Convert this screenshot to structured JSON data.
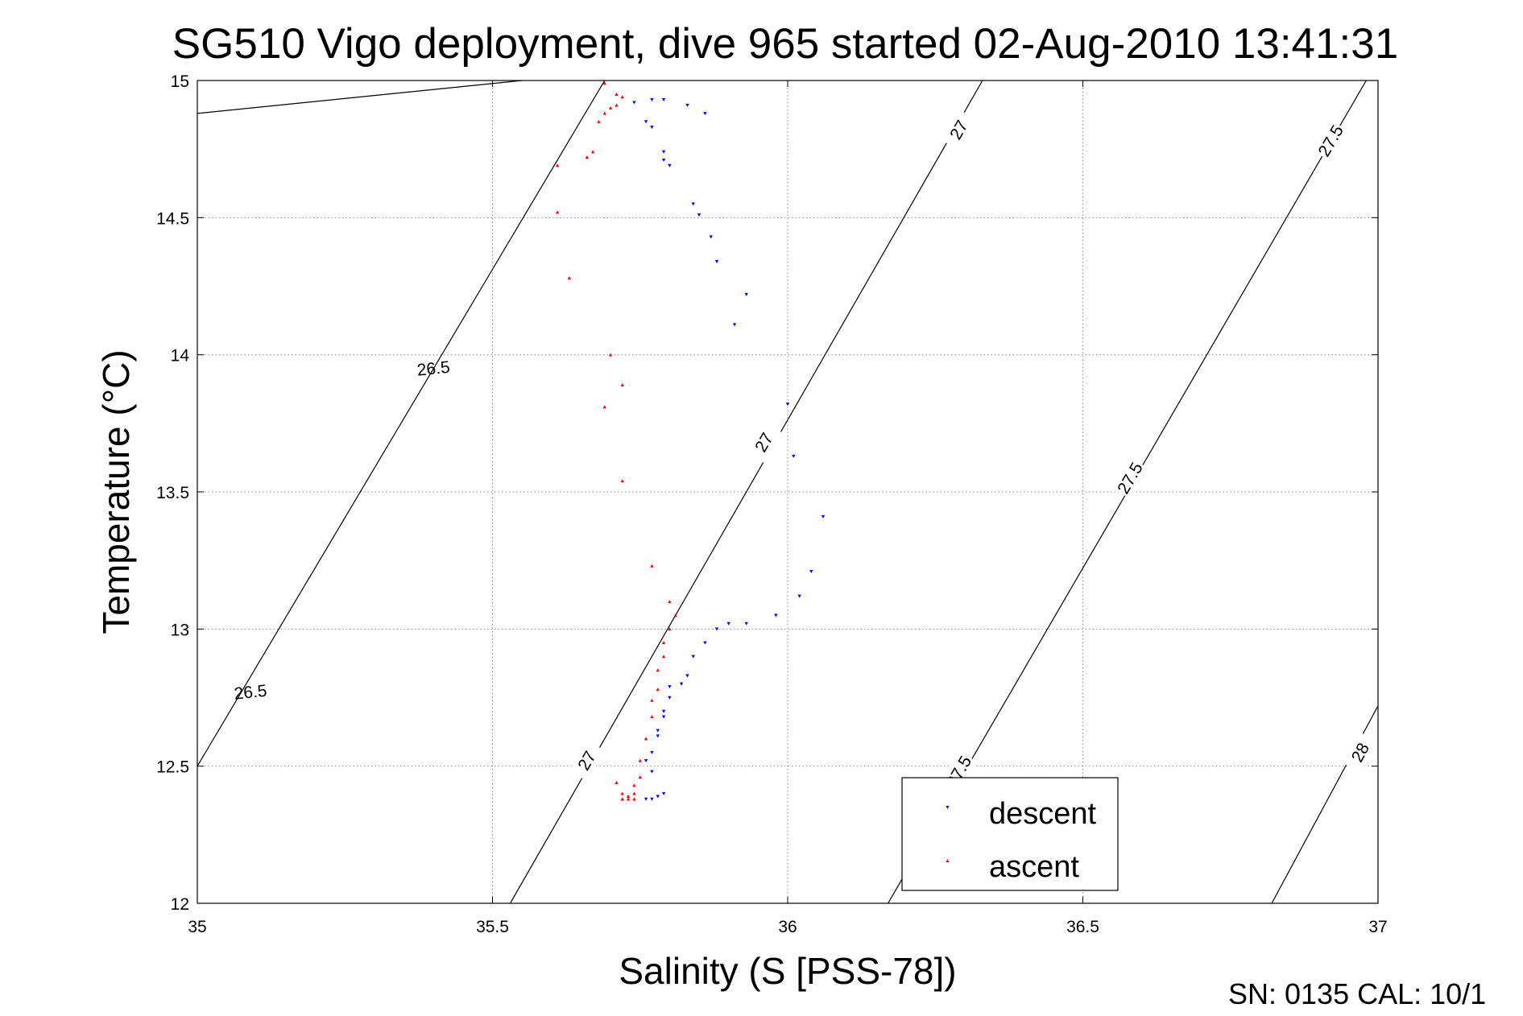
{
  "chart_data": {
    "type": "scatter",
    "title": "SG510 Vigo deployment, dive 965 started 02-Aug-2010 13:41:31",
    "xlabel": "Salinity (S [PSS-78])",
    "ylabel": "Temperature (°C)",
    "xlim": [
      35,
      37
    ],
    "ylim": [
      12,
      15
    ],
    "xticks": [
      35,
      35.5,
      36,
      36.5,
      37
    ],
    "yticks": [
      12,
      12.5,
      13,
      13.5,
      14,
      14.5,
      15
    ],
    "xtick_labels": [
      "35",
      "35.5",
      "36",
      "36.5",
      "37"
    ],
    "ytick_labels": [
      "12",
      "12.5",
      "13",
      "13.5",
      "14",
      "14.5",
      "15"
    ],
    "grid": true,
    "legend_position": "bottom-right",
    "colors": {
      "descent": "#0000ff",
      "ascent": "#ff0000",
      "contour": "#000000"
    },
    "contours": [
      {
        "label": "26.5",
        "points": [
          [
            35.0,
            14.88
          ],
          [
            35.55,
            15.0
          ]
        ],
        "label_pos": [
          [
            35.4,
            13.95
          ],
          [
            35.09,
            12.77
          ]
        ]
      },
      {
        "label": "26.5",
        "points": [
          [
            35.0,
            12.5
          ],
          [
            35.69,
            15.0
          ]
        ]
      },
      {
        "label": "27",
        "points": [
          [
            35.53,
            12.0
          ],
          [
            36.33,
            15.0
          ]
        ],
        "label_pos": [
          [
            36.29,
            14.82
          ],
          [
            35.96,
            13.68
          ],
          [
            35.66,
            12.52
          ]
        ]
      },
      {
        "label": "27.5",
        "points": [
          [
            36.17,
            12.0
          ],
          [
            36.98,
            15.0
          ]
        ],
        "label_pos": [
          [
            36.92,
            14.78
          ],
          [
            36.58,
            13.55
          ],
          [
            36.29,
            12.48
          ]
        ]
      },
      {
        "label": "28",
        "points": [
          [
            36.82,
            12.0
          ],
          [
            37.0,
            12.72
          ]
        ],
        "label_pos": [
          [
            36.97,
            12.55
          ]
        ]
      }
    ],
    "series": [
      {
        "name": "descent",
        "marker": "triangle-down",
        "x": [
          35.74,
          35.77,
          35.79,
          35.83,
          35.86,
          35.76,
          35.77,
          35.79,
          35.79,
          35.8,
          35.84,
          35.85,
          35.87,
          35.88,
          35.93,
          35.91,
          36.0,
          36.01,
          36.06,
          36.04,
          36.02,
          35.98,
          35.93,
          35.9,
          35.88,
          35.86,
          35.84,
          35.83,
          35.82,
          35.8,
          35.8,
          35.79,
          35.79,
          35.78,
          35.78,
          35.77,
          35.76,
          35.77,
          35.79,
          35.78,
          35.77,
          35.76
        ],
        "y": [
          14.92,
          14.93,
          14.93,
          14.91,
          14.88,
          14.85,
          14.83,
          14.74,
          14.71,
          14.69,
          14.55,
          14.51,
          14.43,
          14.34,
          14.22,
          14.11,
          13.82,
          13.63,
          13.41,
          13.21,
          13.12,
          13.05,
          13.02,
          13.02,
          13.0,
          12.95,
          12.9,
          12.83,
          12.8,
          12.79,
          12.75,
          12.7,
          12.68,
          12.63,
          12.61,
          12.55,
          12.52,
          12.48,
          12.4,
          12.39,
          12.38,
          12.38
        ]
      },
      {
        "name": "ascent",
        "marker": "triangle-up",
        "x": [
          35.69,
          35.71,
          35.72,
          35.71,
          35.7,
          35.69,
          35.68,
          35.67,
          35.66,
          35.61,
          35.61,
          35.63,
          35.7,
          35.72,
          35.69,
          35.72,
          35.77,
          35.8,
          35.81,
          35.8,
          35.79,
          35.79,
          35.78,
          35.78,
          35.77,
          35.77,
          35.76,
          35.75,
          35.75,
          35.74,
          35.74,
          35.73,
          35.73,
          35.72,
          35.72,
          35.71,
          35.72,
          35.74
        ],
        "y": [
          14.99,
          14.95,
          14.94,
          14.91,
          14.9,
          14.88,
          14.85,
          14.74,
          14.72,
          14.69,
          14.52,
          14.28,
          14.0,
          13.89,
          13.81,
          13.54,
          13.23,
          13.1,
          13.05,
          13.0,
          12.95,
          12.9,
          12.85,
          12.78,
          12.74,
          12.68,
          12.6,
          12.52,
          12.46,
          12.43,
          12.4,
          12.39,
          12.38,
          12.38,
          12.4,
          12.44,
          12.38,
          12.38
        ]
      }
    ]
  },
  "footer": {
    "sn_cal": "SN: 0135  CAL: 10/1"
  }
}
